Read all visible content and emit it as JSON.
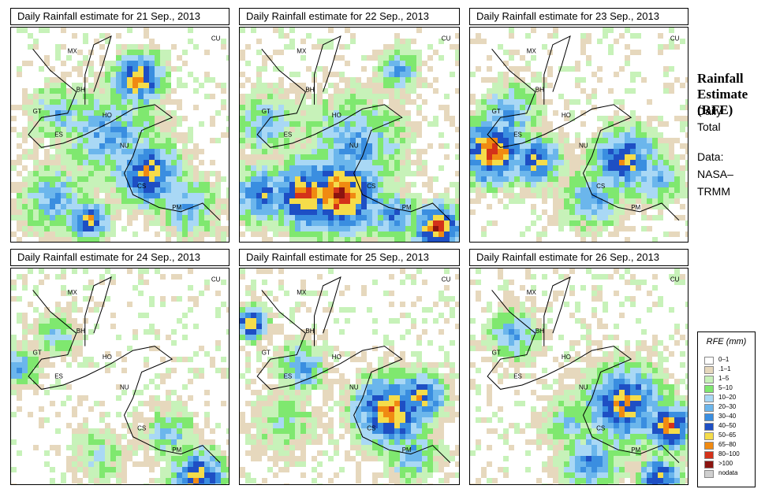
{
  "panels": [
    {
      "title": "Daily Rainfall estimate for  21 Sep., 2013"
    },
    {
      "title": "Daily Rainfall estimate for  22 Sep., 2013"
    },
    {
      "title": "Daily Rainfall estimate for  23 Sep., 2013"
    },
    {
      "title": "Daily Rainfall estimate for  24 Sep., 2013"
    },
    {
      "title": "Daily Rainfall estimate for  25 Sep., 2013"
    },
    {
      "title": "Daily Rainfall estimate for  26 Sep., 2013"
    }
  ],
  "map_labels": [
    "MX",
    "BH",
    "GT",
    "HO",
    "ES",
    "NU",
    "CS",
    "PM",
    "CU"
  ],
  "side": {
    "title_line1": "Rainfall",
    "title_line2": "Estimate",
    "title_line3": "(RFE)",
    "daily_line1": "Daily",
    "daily_line2": "Total",
    "data_line1": "Data:",
    "data_line2": "NASA–",
    "data_line3": "TRMM"
  },
  "legend": {
    "title": "RFE (mm)",
    "items": [
      {
        "label": "0–1",
        "color": "#ffffff"
      },
      {
        "label": ".1–1",
        "color": "#e6d8bd"
      },
      {
        "label": "1–5",
        "color": "#c7f2b9"
      },
      {
        "label": "5–10",
        "color": "#7fe86f"
      },
      {
        "label": "10–20",
        "color": "#a9d8f5"
      },
      {
        "label": "20–30",
        "color": "#6bb6ec"
      },
      {
        "label": "30–40",
        "color": "#3a8ee0"
      },
      {
        "label": "40–50",
        "color": "#1e4fc4"
      },
      {
        "label": "50–65",
        "color": "#f5dc4a"
      },
      {
        "label": "65–80",
        "color": "#f08a12"
      },
      {
        "label": "80–100",
        "color": "#d4321a"
      },
      {
        "label": ">100",
        "color": "#8c1410"
      },
      {
        "label": "nodata",
        "color": "#cfcfcf"
      }
    ]
  }
}
